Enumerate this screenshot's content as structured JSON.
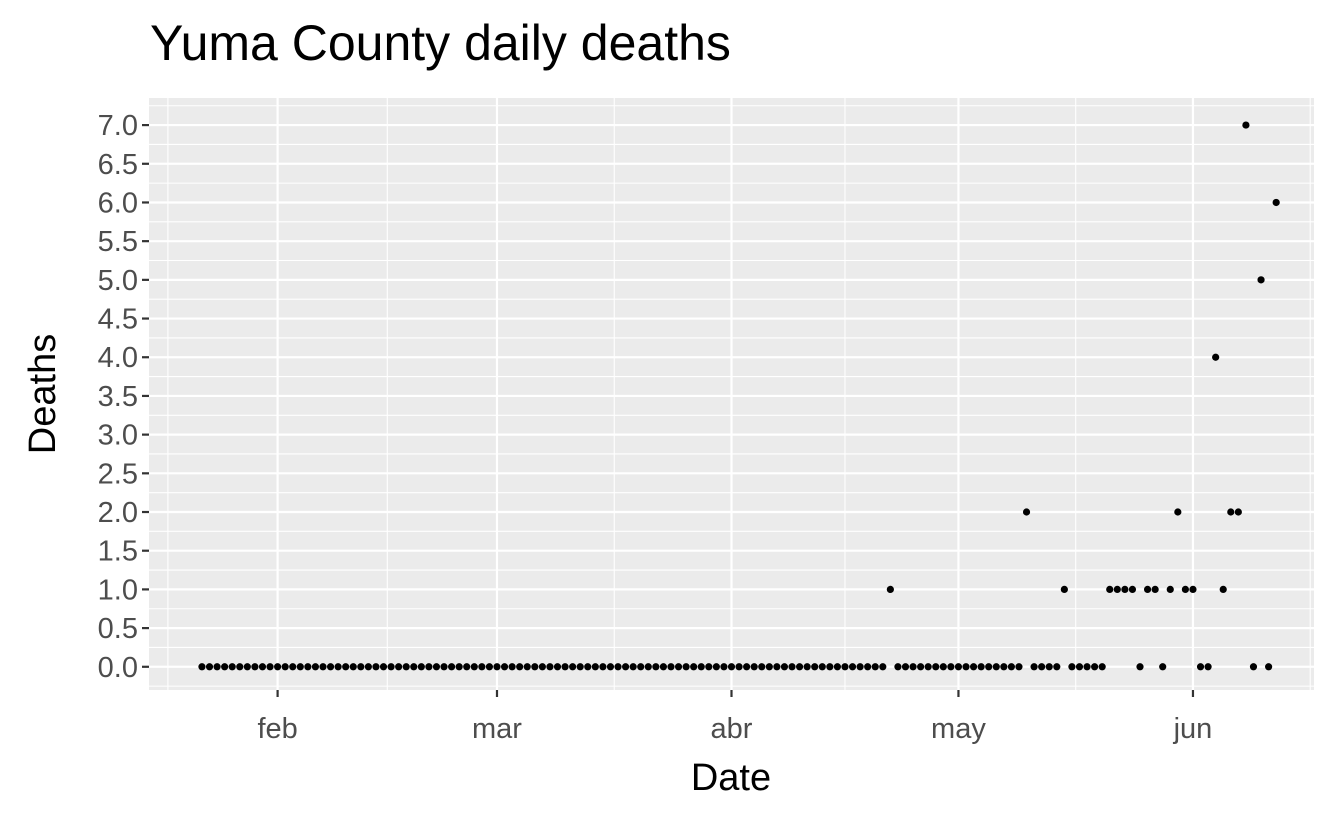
{
  "chart_data": {
    "type": "scatter",
    "title": "Yuma County daily deaths",
    "xlabel": "Date",
    "ylabel": "Deaths",
    "x_ticks": [
      {
        "date": "2020-02-01",
        "label": "feb"
      },
      {
        "date": "2020-03-01",
        "label": "mar"
      },
      {
        "date": "2020-04-01",
        "label": "abr"
      },
      {
        "date": "2020-05-01",
        "label": "may"
      },
      {
        "date": "2020-06-01",
        "label": "jun"
      }
    ],
    "xlim": [
      "2020-01-15",
      "2020-06-17"
    ],
    "ylim": [
      -0.3,
      7.35
    ],
    "y_ticks": [
      0,
      0.5,
      1,
      1.5,
      2,
      2.5,
      3,
      3.5,
      4,
      4.5,
      5,
      5.5,
      6,
      6.5,
      7
    ],
    "y_tick_labels": [
      "0.0",
      "0.5",
      "1.0",
      "1.5",
      "2.0",
      "2.5",
      "3.0",
      "3.5",
      "4.0",
      "4.5",
      "5.0",
      "5.5",
      "6.0",
      "6.5",
      "7.0"
    ],
    "grid": true,
    "points": [
      {
        "x": "2020-01-22",
        "y": 0
      },
      {
        "x": "2020-01-23",
        "y": 0
      },
      {
        "x": "2020-01-24",
        "y": 0
      },
      {
        "x": "2020-01-25",
        "y": 0
      },
      {
        "x": "2020-01-26",
        "y": 0
      },
      {
        "x": "2020-01-27",
        "y": 0
      },
      {
        "x": "2020-01-28",
        "y": 0
      },
      {
        "x": "2020-01-29",
        "y": 0
      },
      {
        "x": "2020-01-30",
        "y": 0
      },
      {
        "x": "2020-01-31",
        "y": 0
      },
      {
        "x": "2020-02-01",
        "y": 0
      },
      {
        "x": "2020-02-02",
        "y": 0
      },
      {
        "x": "2020-02-03",
        "y": 0
      },
      {
        "x": "2020-02-04",
        "y": 0
      },
      {
        "x": "2020-02-05",
        "y": 0
      },
      {
        "x": "2020-02-06",
        "y": 0
      },
      {
        "x": "2020-02-07",
        "y": 0
      },
      {
        "x": "2020-02-08",
        "y": 0
      },
      {
        "x": "2020-02-09",
        "y": 0
      },
      {
        "x": "2020-02-10",
        "y": 0
      },
      {
        "x": "2020-02-11",
        "y": 0
      },
      {
        "x": "2020-02-12",
        "y": 0
      },
      {
        "x": "2020-02-13",
        "y": 0
      },
      {
        "x": "2020-02-14",
        "y": 0
      },
      {
        "x": "2020-02-15",
        "y": 0
      },
      {
        "x": "2020-02-16",
        "y": 0
      },
      {
        "x": "2020-02-17",
        "y": 0
      },
      {
        "x": "2020-02-18",
        "y": 0
      },
      {
        "x": "2020-02-19",
        "y": 0
      },
      {
        "x": "2020-02-20",
        "y": 0
      },
      {
        "x": "2020-02-21",
        "y": 0
      },
      {
        "x": "2020-02-22",
        "y": 0
      },
      {
        "x": "2020-02-23",
        "y": 0
      },
      {
        "x": "2020-02-24",
        "y": 0
      },
      {
        "x": "2020-02-25",
        "y": 0
      },
      {
        "x": "2020-02-26",
        "y": 0
      },
      {
        "x": "2020-02-27",
        "y": 0
      },
      {
        "x": "2020-02-28",
        "y": 0
      },
      {
        "x": "2020-02-29",
        "y": 0
      },
      {
        "x": "2020-03-01",
        "y": 0
      },
      {
        "x": "2020-03-02",
        "y": 0
      },
      {
        "x": "2020-03-03",
        "y": 0
      },
      {
        "x": "2020-03-04",
        "y": 0
      },
      {
        "x": "2020-03-05",
        "y": 0
      },
      {
        "x": "2020-03-06",
        "y": 0
      },
      {
        "x": "2020-03-07",
        "y": 0
      },
      {
        "x": "2020-03-08",
        "y": 0
      },
      {
        "x": "2020-03-09",
        "y": 0
      },
      {
        "x": "2020-03-10",
        "y": 0
      },
      {
        "x": "2020-03-11",
        "y": 0
      },
      {
        "x": "2020-03-12",
        "y": 0
      },
      {
        "x": "2020-03-13",
        "y": 0
      },
      {
        "x": "2020-03-14",
        "y": 0
      },
      {
        "x": "2020-03-15",
        "y": 0
      },
      {
        "x": "2020-03-16",
        "y": 0
      },
      {
        "x": "2020-03-17",
        "y": 0
      },
      {
        "x": "2020-03-18",
        "y": 0
      },
      {
        "x": "2020-03-19",
        "y": 0
      },
      {
        "x": "2020-03-20",
        "y": 0
      },
      {
        "x": "2020-03-21",
        "y": 0
      },
      {
        "x": "2020-03-22",
        "y": 0
      },
      {
        "x": "2020-03-23",
        "y": 0
      },
      {
        "x": "2020-03-24",
        "y": 0
      },
      {
        "x": "2020-03-25",
        "y": 0
      },
      {
        "x": "2020-03-26",
        "y": 0
      },
      {
        "x": "2020-03-27",
        "y": 0
      },
      {
        "x": "2020-03-28",
        "y": 0
      },
      {
        "x": "2020-03-29",
        "y": 0
      },
      {
        "x": "2020-03-30",
        "y": 0
      },
      {
        "x": "2020-03-31",
        "y": 0
      },
      {
        "x": "2020-04-01",
        "y": 0
      },
      {
        "x": "2020-04-02",
        "y": 0
      },
      {
        "x": "2020-04-03",
        "y": 0
      },
      {
        "x": "2020-04-04",
        "y": 0
      },
      {
        "x": "2020-04-05",
        "y": 0
      },
      {
        "x": "2020-04-06",
        "y": 0
      },
      {
        "x": "2020-04-07",
        "y": 0
      },
      {
        "x": "2020-04-08",
        "y": 0
      },
      {
        "x": "2020-04-09",
        "y": 0
      },
      {
        "x": "2020-04-10",
        "y": 0
      },
      {
        "x": "2020-04-11",
        "y": 0
      },
      {
        "x": "2020-04-12",
        "y": 0
      },
      {
        "x": "2020-04-13",
        "y": 0
      },
      {
        "x": "2020-04-14",
        "y": 0
      },
      {
        "x": "2020-04-15",
        "y": 0
      },
      {
        "x": "2020-04-16",
        "y": 0
      },
      {
        "x": "2020-04-17",
        "y": 0
      },
      {
        "x": "2020-04-18",
        "y": 0
      },
      {
        "x": "2020-04-19",
        "y": 0
      },
      {
        "x": "2020-04-20",
        "y": 0
      },
      {
        "x": "2020-04-21",
        "y": 0
      },
      {
        "x": "2020-04-22",
        "y": 1
      },
      {
        "x": "2020-04-23",
        "y": 0
      },
      {
        "x": "2020-04-24",
        "y": 0
      },
      {
        "x": "2020-04-25",
        "y": 0
      },
      {
        "x": "2020-04-26",
        "y": 0
      },
      {
        "x": "2020-04-27",
        "y": 0
      },
      {
        "x": "2020-04-28",
        "y": 0
      },
      {
        "x": "2020-04-29",
        "y": 0
      },
      {
        "x": "2020-04-30",
        "y": 0
      },
      {
        "x": "2020-05-01",
        "y": 0
      },
      {
        "x": "2020-05-02",
        "y": 0
      },
      {
        "x": "2020-05-03",
        "y": 0
      },
      {
        "x": "2020-05-04",
        "y": 0
      },
      {
        "x": "2020-05-05",
        "y": 0
      },
      {
        "x": "2020-05-06",
        "y": 0
      },
      {
        "x": "2020-05-07",
        "y": 0
      },
      {
        "x": "2020-05-08",
        "y": 0
      },
      {
        "x": "2020-05-09",
        "y": 0
      },
      {
        "x": "2020-05-10",
        "y": 2
      },
      {
        "x": "2020-05-11",
        "y": 0
      },
      {
        "x": "2020-05-12",
        "y": 0
      },
      {
        "x": "2020-05-13",
        "y": 0
      },
      {
        "x": "2020-05-14",
        "y": 0
      },
      {
        "x": "2020-05-15",
        "y": 1
      },
      {
        "x": "2020-05-16",
        "y": 0
      },
      {
        "x": "2020-05-17",
        "y": 0
      },
      {
        "x": "2020-05-18",
        "y": 0
      },
      {
        "x": "2020-05-19",
        "y": 0
      },
      {
        "x": "2020-05-20",
        "y": 0
      },
      {
        "x": "2020-05-21",
        "y": 1
      },
      {
        "x": "2020-05-22",
        "y": 1
      },
      {
        "x": "2020-05-23",
        "y": 1
      },
      {
        "x": "2020-05-24",
        "y": 1
      },
      {
        "x": "2020-05-25",
        "y": 0
      },
      {
        "x": "2020-05-26",
        "y": 1
      },
      {
        "x": "2020-05-27",
        "y": 1
      },
      {
        "x": "2020-05-28",
        "y": 0
      },
      {
        "x": "2020-05-29",
        "y": 1
      },
      {
        "x": "2020-05-30",
        "y": 2
      },
      {
        "x": "2020-05-31",
        "y": 1
      },
      {
        "x": "2020-06-01",
        "y": 1
      },
      {
        "x": "2020-06-02",
        "y": 0
      },
      {
        "x": "2020-06-03",
        "y": 0
      },
      {
        "x": "2020-06-04",
        "y": 4
      },
      {
        "x": "2020-06-05",
        "y": 1
      },
      {
        "x": "2020-06-06",
        "y": 2
      },
      {
        "x": "2020-06-07",
        "y": 2
      },
      {
        "x": "2020-06-08",
        "y": 7
      },
      {
        "x": "2020-06-09",
        "y": 0
      },
      {
        "x": "2020-06-10",
        "y": 5
      },
      {
        "x": "2020-06-11",
        "y": 0
      },
      {
        "x": "2020-06-12",
        "y": 6
      }
    ]
  }
}
